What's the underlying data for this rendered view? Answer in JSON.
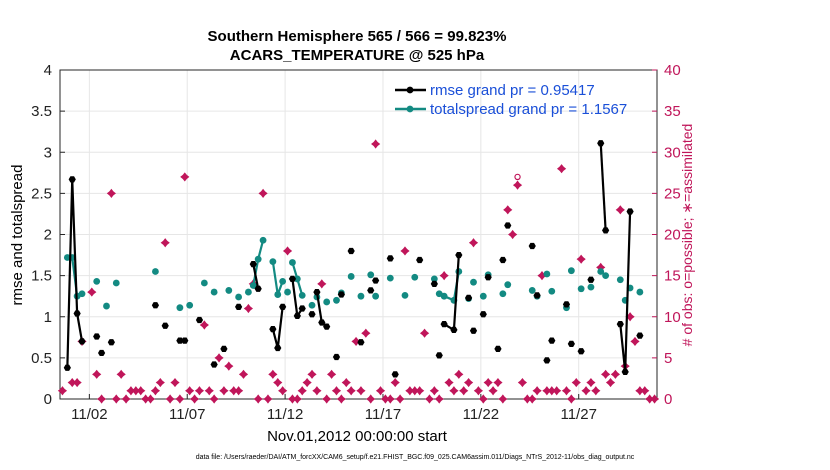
{
  "chart_data": {
    "type": "line",
    "title_line1": "Southern Hemisphere 565 / 566 = 99.823%",
    "title_line2": "ACARS_TEMPERATURE @ 525 hPa",
    "xlabel": "Nov.01,2012 00:00:00 start",
    "ylabel_left": "rmse and totalspread",
    "ylabel_right": "# of obs: o=possible; ∗=assimilated",
    "footer": "data file: /Users/raeder/DAI/ATM_forcXX/CAM6_setup/f.e21.FHIST_BGC.f09_025.CAM6assim.011/Diags_NTrS_2012-11/obs_diag_output.nc",
    "xlim": [
      0.5,
      31.0
    ],
    "ylim_left": [
      0,
      4
    ],
    "ylim_right": [
      0,
      40
    ],
    "grid": true,
    "xticks": [
      {
        "value": 2,
        "label": "11/02"
      },
      {
        "value": 7,
        "label": "11/07"
      },
      {
        "value": 12,
        "label": "11/12"
      },
      {
        "value": 17,
        "label": "11/17"
      },
      {
        "value": 22,
        "label": "11/22"
      },
      {
        "value": 27,
        "label": "11/27"
      }
    ],
    "yticks_left": [
      "0",
      "0.5",
      "1",
      "1.5",
      "2",
      "2.5",
      "3",
      "3.5",
      "4"
    ],
    "yticks_right": [
      "0",
      "5",
      "10",
      "15",
      "20",
      "25",
      "30",
      "35",
      "40"
    ],
    "legend_position": "top-right",
    "series": [
      {
        "name": "rmse grand pr = 0.95417",
        "color": "#000000",
        "marker": "hexagon",
        "axis": "left",
        "x": [
          0.875,
          1.125,
          1.375,
          1.625,
          1.875,
          2.375,
          2.625,
          3.125,
          5.375,
          5.875,
          6.625,
          6.875,
          7.625,
          8.375,
          8.875,
          9.625,
          10.375,
          10.625,
          10.875,
          11.375,
          11.625,
          11.875,
          12.375,
          12.625,
          12.875,
          13.375,
          13.625,
          13.875,
          14.125,
          14.625,
          14.875,
          15.375,
          15.875,
          16.375,
          16.625,
          17.375,
          17.625,
          18.875,
          19.625,
          19.875,
          20.125,
          20.625,
          20.875,
          21.375,
          21.625,
          22.125,
          22.375,
          22.875,
          23.125,
          23.375,
          24.625,
          24.875,
          25.375,
          25.625,
          26.375,
          26.625,
          27.125,
          27.625,
          28.125,
          28.375,
          29.125,
          29.375,
          29.625,
          30.125
        ],
        "y": [
          0.38,
          2.67,
          1.04,
          0.7,
          null,
          0.76,
          0.56,
          0.69,
          1.14,
          0.89,
          0.71,
          0.71,
          0.96,
          0.42,
          0.61,
          1.12,
          1.64,
          1.34,
          null,
          0.85,
          0.62,
          1.12,
          1.46,
          1.01,
          1.1,
          1.03,
          1.3,
          0.93,
          0.88,
          0.51,
          1.27,
          1.8,
          0.69,
          1.32,
          1.44,
          1.71,
          0.3,
          1.69,
          1.4,
          0.53,
          0.91,
          0.84,
          1.75,
          1.23,
          0.83,
          1.03,
          1.48,
          0.61,
          1.69,
          2.11,
          1.86,
          1.26,
          0.47,
          0.71,
          1.15,
          0.67,
          0.58,
          1.45,
          3.11,
          2.05,
          0.91,
          0.33,
          2.28,
          0.77
        ],
        "segments": [
          [
            0,
            4
          ],
          [
            16,
            18
          ],
          [
            19,
            21
          ],
          [
            22,
            24
          ],
          [
            26,
            28
          ],
          [
            40,
            42
          ],
          [
            58,
            59
          ],
          [
            60,
            62
          ]
        ]
      },
      {
        "name": "totalspread grand pr = 1.1567",
        "color": "#138a82",
        "marker": "circle",
        "axis": "left",
        "x": [
          0.875,
          1.125,
          1.375,
          1.625,
          1.875,
          2.375,
          2.875,
          3.375,
          5.375,
          6.625,
          7.125,
          7.875,
          8.375,
          9.125,
          9.625,
          10.125,
          10.375,
          10.625,
          10.875,
          11.375,
          11.625,
          11.875,
          12.125,
          12.375,
          12.625,
          12.875,
          13.375,
          13.625,
          14.125,
          14.625,
          14.875,
          15.375,
          15.875,
          16.375,
          16.625,
          17.375,
          18.125,
          18.625,
          19.625,
          19.875,
          20.125,
          20.625,
          20.875,
          21.375,
          21.625,
          22.125,
          22.375,
          23.125,
          23.375,
          24.625,
          24.875,
          25.375,
          25.625,
          26.375,
          26.625,
          27.125,
          27.625,
          28.125,
          28.375,
          29.125,
          29.375,
          29.625,
          30.125
        ],
        "y": [
          1.72,
          1.72,
          1.25,
          1.28,
          null,
          1.43,
          1.13,
          1.41,
          1.55,
          1.11,
          1.14,
          1.41,
          1.3,
          1.32,
          1.24,
          1.3,
          1.38,
          1.7,
          1.93,
          1.67,
          1.27,
          1.43,
          1.3,
          1.66,
          1.46,
          1.26,
          1.14,
          1.24,
          1.18,
          1.2,
          1.29,
          1.49,
          1.25,
          1.51,
          1.25,
          1.47,
          1.26,
          1.48,
          1.46,
          1.28,
          1.25,
          1.2,
          1.55,
          1.22,
          1.42,
          1.25,
          1.51,
          1.28,
          1.39,
          1.32,
          1.25,
          1.52,
          1.31,
          1.11,
          1.56,
          1.34,
          1.36,
          1.55,
          1.5,
          1.45,
          1.2,
          1.35,
          1.3
        ],
        "segments": [
          [
            0,
            4
          ],
          [
            16,
            18
          ],
          [
            19,
            21
          ],
          [
            23,
            25
          ],
          [
            40,
            42
          ],
          [
            57,
            58
          ]
        ]
      },
      {
        "name": "obs possible",
        "color": "#c0165a",
        "marker": "circle-open",
        "axis": "right",
        "x": [
          0.625,
          1.125,
          1.375,
          1.625,
          2.125,
          2.375,
          2.625,
          3.125,
          3.375,
          3.625,
          3.875,
          4.125,
          4.375,
          4.625,
          4.875,
          5.125,
          5.375,
          5.625,
          5.875,
          6.125,
          6.375,
          6.625,
          6.875,
          7.125,
          7.375,
          7.625,
          7.875,
          8.125,
          8.375,
          8.625,
          8.875,
          9.125,
          9.375,
          9.625,
          9.875,
          10.125,
          10.375,
          10.625,
          10.875,
          11.125,
          11.375,
          11.625,
          11.875,
          12.125,
          12.375,
          12.625,
          12.875,
          13.125,
          13.375,
          13.625,
          13.875,
          14.125,
          14.375,
          14.625,
          14.875,
          15.125,
          15.375,
          15.625,
          15.875,
          16.125,
          16.375,
          16.625,
          16.875,
          17.125,
          17.375,
          17.625,
          17.875,
          18.125,
          18.375,
          18.625,
          18.875,
          19.125,
          19.375,
          19.625,
          19.875,
          20.125,
          20.375,
          20.625,
          20.875,
          21.125,
          21.375,
          21.625,
          21.875,
          22.125,
          22.375,
          22.625,
          22.875,
          23.125,
          23.375,
          23.625,
          23.875,
          24.125,
          24.375,
          24.625,
          24.875,
          25.125,
          25.375,
          25.625,
          25.875,
          26.125,
          26.375,
          26.625,
          26.875,
          27.125,
          27.375,
          27.625,
          27.875,
          28.125,
          28.375,
          28.625,
          28.875,
          29.125,
          29.375,
          29.625,
          29.875,
          30.125,
          30.375,
          30.625,
          30.875
        ],
        "y": [
          1,
          2,
          2,
          7,
          13,
          3,
          0,
          25,
          0,
          3,
          0,
          1,
          1,
          1,
          0,
          0,
          1,
          2,
          19,
          0,
          2,
          0,
          27,
          1,
          0,
          1,
          9,
          1,
          0,
          5,
          1,
          4,
          1,
          1,
          3,
          11,
          14,
          0,
          25,
          0,
          3,
          2,
          1,
          18,
          0,
          0,
          1,
          2,
          3,
          1,
          14,
          0,
          3,
          1,
          0,
          2,
          1,
          7,
          1,
          8,
          0,
          31,
          1,
          0,
          0,
          2,
          0,
          18,
          1,
          1,
          1,
          8,
          0,
          1,
          0,
          15,
          2,
          1,
          3,
          1,
          2,
          19,
          1,
          0,
          2,
          1,
          2,
          0,
          23,
          20,
          27,
          2,
          0,
          0,
          1,
          15,
          1,
          1,
          1,
          28,
          1,
          0,
          2,
          17,
          1,
          2,
          1,
          16,
          3,
          2,
          3,
          23,
          4,
          10,
          7,
          1,
          1,
          0,
          0
        ],
        "open_overlay": [
          {
            "x": 23.875,
            "y": 27
          }
        ]
      },
      {
        "name": "obs assimilated",
        "color": "#c0165a",
        "marker": "star",
        "axis": "right",
        "x": [
          0.625,
          1.125,
          1.375,
          1.625,
          2.125,
          2.375,
          2.625,
          3.125,
          3.375,
          3.625,
          3.875,
          4.125,
          4.375,
          4.625,
          4.875,
          5.125,
          5.375,
          5.625,
          5.875,
          6.125,
          6.375,
          6.625,
          6.875,
          7.125,
          7.375,
          7.625,
          7.875,
          8.125,
          8.375,
          8.625,
          8.875,
          9.125,
          9.375,
          9.625,
          9.875,
          10.125,
          10.375,
          10.625,
          10.875,
          11.125,
          11.375,
          11.625,
          11.875,
          12.125,
          12.375,
          12.625,
          12.875,
          13.125,
          13.375,
          13.625,
          13.875,
          14.125,
          14.375,
          14.625,
          14.875,
          15.125,
          15.375,
          15.625,
          15.875,
          16.125,
          16.375,
          16.625,
          16.875,
          17.125,
          17.375,
          17.625,
          17.875,
          18.125,
          18.375,
          18.625,
          18.875,
          19.125,
          19.375,
          19.625,
          19.875,
          20.125,
          20.375,
          20.625,
          20.875,
          21.125,
          21.375,
          21.625,
          21.875,
          22.125,
          22.375,
          22.625,
          22.875,
          23.125,
          23.375,
          23.625,
          23.875,
          24.125,
          24.375,
          24.625,
          24.875,
          25.125,
          25.375,
          25.625,
          25.875,
          26.125,
          26.375,
          26.625,
          26.875,
          27.125,
          27.375,
          27.625,
          27.875,
          28.125,
          28.375,
          28.625,
          28.875,
          29.125,
          29.375,
          29.625,
          29.875,
          30.125,
          30.375,
          30.625,
          30.875
        ],
        "y": [
          1,
          2,
          2,
          7,
          13,
          3,
          0,
          25,
          0,
          3,
          0,
          1,
          1,
          1,
          0,
          0,
          1,
          2,
          19,
          0,
          2,
          0,
          27,
          1,
          0,
          1,
          9,
          1,
          0,
          5,
          1,
          4,
          1,
          1,
          3,
          11,
          14,
          0,
          25,
          0,
          3,
          2,
          1,
          18,
          0,
          0,
          1,
          2,
          3,
          1,
          14,
          0,
          3,
          1,
          0,
          2,
          1,
          7,
          1,
          8,
          0,
          31,
          1,
          0,
          0,
          2,
          0,
          18,
          1,
          1,
          1,
          8,
          0,
          1,
          0,
          15,
          2,
          1,
          3,
          1,
          2,
          19,
          1,
          0,
          2,
          1,
          2,
          0,
          23,
          20,
          26,
          2,
          0,
          0,
          1,
          15,
          1,
          1,
          1,
          28,
          1,
          0,
          2,
          17,
          1,
          2,
          1,
          16,
          3,
          2,
          3,
          23,
          4,
          10,
          7,
          1,
          1,
          0,
          0
        ]
      }
    ]
  }
}
